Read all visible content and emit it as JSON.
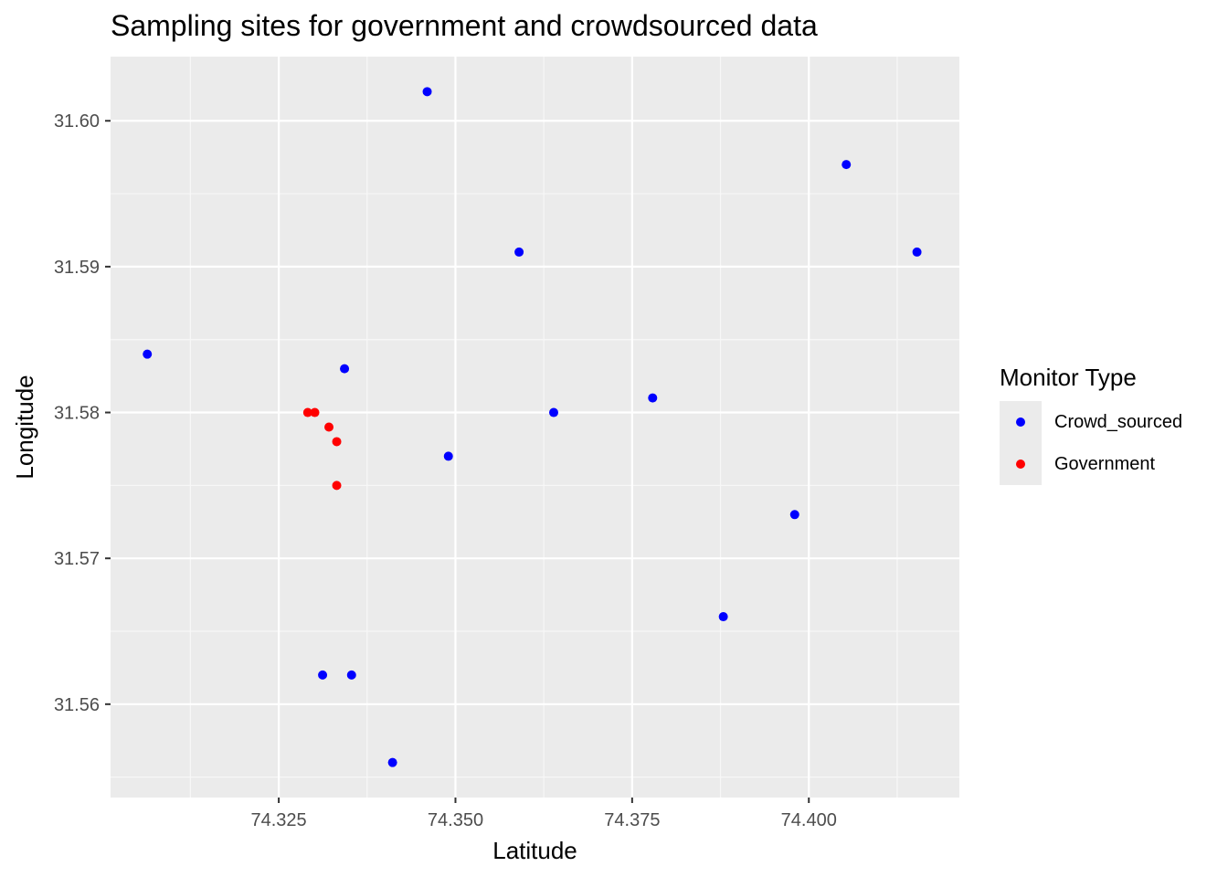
{
  "chart_data": {
    "type": "scatter",
    "title": "Sampling sites for government and crowdsourced data",
    "xlabel": "Latitude",
    "ylabel": "Longitude",
    "xlim": [
      74.3012,
      74.4213
    ],
    "ylim": [
      31.5536,
      31.6044
    ],
    "x_ticks": [
      74.325,
      74.35,
      74.375,
      74.4
    ],
    "x_tick_labels": [
      "74.325",
      "74.350",
      "74.375",
      "74.400"
    ],
    "y_ticks": [
      31.56,
      31.57,
      31.58,
      31.59,
      31.6
    ],
    "y_tick_labels": [
      "31.56",
      "31.57",
      "31.58",
      "31.59",
      "31.60"
    ],
    "grid": true,
    "legend_position": "right",
    "legend_title": "Monitor Type",
    "series": [
      {
        "name": "Crowd_sourced",
        "color": "#0000ff",
        "points": [
          {
            "x": 74.346,
            "y": 31.602
          },
          {
            "x": 74.4053,
            "y": 31.597
          },
          {
            "x": 74.359,
            "y": 31.591
          },
          {
            "x": 74.4153,
            "y": 31.591
          },
          {
            "x": 74.3064,
            "y": 31.584
          },
          {
            "x": 74.3343,
            "y": 31.583
          },
          {
            "x": 74.3779,
            "y": 31.581
          },
          {
            "x": 74.3639,
            "y": 31.58
          },
          {
            "x": 74.349,
            "y": 31.577
          },
          {
            "x": 74.398,
            "y": 31.573
          },
          {
            "x": 74.3879,
            "y": 31.566
          },
          {
            "x": 74.3312,
            "y": 31.562
          },
          {
            "x": 74.3353,
            "y": 31.562
          },
          {
            "x": 74.3411,
            "y": 31.556
          }
        ]
      },
      {
        "name": "Government",
        "color": "#ff0000",
        "points": [
          {
            "x": 74.3291,
            "y": 31.58
          },
          {
            "x": 74.3301,
            "y": 31.58
          },
          {
            "x": 74.3321,
            "y": 31.579
          },
          {
            "x": 74.3332,
            "y": 31.578
          },
          {
            "x": 74.3332,
            "y": 31.575
          }
        ]
      }
    ],
    "colors": {
      "panel_background": "#ebebeb",
      "grid_major": "#ffffff",
      "grid_minor": "#f7f7f7"
    }
  }
}
